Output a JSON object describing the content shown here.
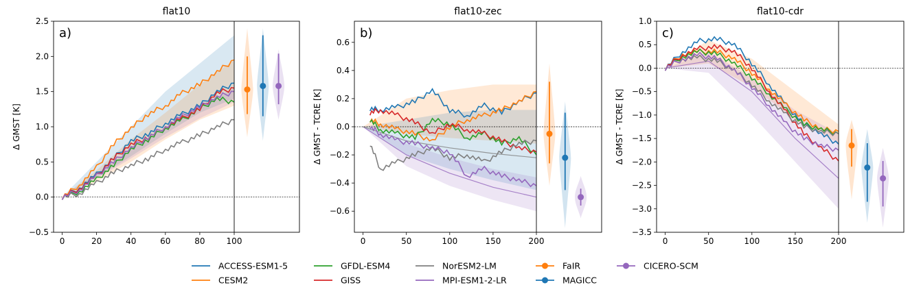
{
  "chart_data": [
    {
      "type": "line",
      "title": "flat10",
      "panel_label": "a)",
      "xlabel": "",
      "ylabel": "Δ GMST [K]",
      "xlim": [
        -5,
        100
      ],
      "ylim": [
        -0.5,
        2.5
      ],
      "xticks": [
        0,
        20,
        40,
        60,
        80,
        100
      ],
      "yticks": [
        -0.5,
        0.0,
        0.5,
        1.0,
        1.5,
        2.0,
        2.5
      ],
      "ytick_labels": [
        "−0.5",
        "0.0",
        "0.5",
        "1.0",
        "1.5",
        "2.0",
        "2.5"
      ],
      "reference_line": 0,
      "bands": [
        {
          "color": "#1f77b4",
          "x": [
            0,
            20,
            40,
            60,
            80,
            100
          ],
          "lower": [
            0,
            0.28,
            0.58,
            0.9,
            1.2,
            1.4
          ],
          "upper": [
            0,
            0.5,
            1.0,
            1.5,
            1.9,
            2.3
          ]
        },
        {
          "color": "#ff7f0e",
          "x": [
            0,
            20,
            40,
            60,
            80,
            100
          ],
          "lower": [
            0,
            0.22,
            0.5,
            0.82,
            1.1,
            1.3
          ],
          "upper": [
            0,
            0.38,
            0.82,
            1.2,
            1.6,
            1.95
          ]
        },
        {
          "color": "#9467bd",
          "x": [
            0,
            20,
            40,
            60,
            80,
            100
          ],
          "lower": [
            0,
            0.26,
            0.55,
            0.85,
            1.12,
            1.35
          ],
          "upper": [
            0,
            0.34,
            0.68,
            1.0,
            1.3,
            1.55
          ]
        }
      ],
      "series": [
        {
          "name": "ACCESS-ESM1-5",
          "color": "#1f77b4",
          "x": [
            0,
            10,
            20,
            30,
            40,
            50,
            60,
            70,
            80,
            90,
            100
          ],
          "y": [
            0,
            0.13,
            0.32,
            0.55,
            0.8,
            0.9,
            1.05,
            1.18,
            1.3,
            1.5,
            1.62
          ]
        },
        {
          "name": "CESM2",
          "color": "#ff7f0e",
          "x": [
            0,
            10,
            20,
            30,
            40,
            50,
            60,
            70,
            80,
            90,
            100
          ],
          "y": [
            0,
            0.17,
            0.42,
            0.75,
            0.98,
            1.18,
            1.3,
            1.48,
            1.6,
            1.78,
            1.95
          ]
        },
        {
          "name": "GFDL-ESM4",
          "color": "#2ca02c",
          "x": [
            0,
            10,
            20,
            30,
            40,
            50,
            60,
            70,
            80,
            90,
            100
          ],
          "y": [
            0,
            0.08,
            0.25,
            0.45,
            0.68,
            0.82,
            0.98,
            1.1,
            1.25,
            1.4,
            1.35
          ]
        },
        {
          "name": "GISS",
          "color": "#d62728",
          "x": [
            0,
            10,
            20,
            30,
            40,
            50,
            60,
            70,
            80,
            90,
            100
          ],
          "y": [
            0,
            0.12,
            0.3,
            0.55,
            0.75,
            0.85,
            1.0,
            1.12,
            1.25,
            1.48,
            1.55
          ]
        },
        {
          "name": "NorESM2-LM",
          "color": "#7f7f7f",
          "x": [
            0,
            10,
            20,
            30,
            40,
            50,
            60,
            70,
            80,
            90,
            100
          ],
          "y": [
            0,
            0.05,
            0.2,
            0.35,
            0.45,
            0.55,
            0.68,
            0.78,
            0.88,
            1.0,
            1.1
          ]
        },
        {
          "name": "MPI-ESM1-2-LR",
          "color": "#9467bd",
          "x": [
            0,
            10,
            20,
            30,
            40,
            50,
            60,
            70,
            80,
            90,
            100
          ],
          "y": [
            0,
            0.1,
            0.3,
            0.5,
            0.7,
            0.85,
            1.0,
            1.15,
            1.28,
            1.42,
            1.5
          ]
        }
      ],
      "violins": [
        {
          "name": "FaIR",
          "color": "#ff7f0e",
          "median": 1.53,
          "q_low": 1.18,
          "q_high": 2.0,
          "min": 0.85,
          "max": 2.4
        },
        {
          "name": "MAGICC",
          "color": "#1f77b4",
          "median": 1.58,
          "q_low": 1.15,
          "q_high": 2.3,
          "min": 0.8,
          "max": 2.4
        },
        {
          "name": "CICERO-SCM",
          "color": "#9467bd",
          "median": 1.58,
          "q_low": 1.32,
          "q_high": 2.04,
          "min": 1.1,
          "max": 2.1
        }
      ]
    },
    {
      "type": "line",
      "title": "flat10-zec",
      "panel_label": "b)",
      "xlabel": "",
      "ylabel": "Δ GMST - TCRE [K]",
      "xlim": [
        -10,
        200
      ],
      "ylim": [
        -0.75,
        0.75
      ],
      "xticks": [
        0,
        50,
        100,
        150,
        200
      ],
      "yticks": [
        -0.6,
        -0.4,
        -0.2,
        0.0,
        0.2,
        0.4,
        0.6
      ],
      "ytick_labels": [
        "−0.6",
        "−0.4",
        "−0.2",
        "0.0",
        "0.2",
        "0.4",
        "0.6"
      ],
      "reference_line": 0,
      "bands": [
        {
          "color": "#ff7f0e",
          "x": [
            0,
            50,
            100,
            150,
            200
          ],
          "lower": [
            0,
            -0.05,
            -0.08,
            -0.1,
            -0.12
          ],
          "upper": [
            0,
            0.2,
            0.26,
            0.3,
            0.3
          ]
        },
        {
          "color": "#1f77b4",
          "x": [
            0,
            50,
            100,
            150,
            200
          ],
          "lower": [
            0,
            -0.2,
            -0.3,
            -0.38,
            -0.45
          ],
          "upper": [
            0,
            0.05,
            0.1,
            0.12,
            0.12
          ]
        },
        {
          "color": "#9467bd",
          "x": [
            0,
            50,
            100,
            150,
            200
          ],
          "lower": [
            0,
            -0.28,
            -0.42,
            -0.52,
            -0.6
          ],
          "upper": [
            0,
            -0.12,
            -0.22,
            -0.3,
            -0.36
          ]
        }
      ],
      "series": [
        {
          "name": "ACCESS-ESM1-5",
          "color": "#1f77b4",
          "x": [
            8,
            20,
            40,
            60,
            80,
            100,
            120,
            140,
            160,
            180,
            200
          ],
          "y": [
            0.13,
            0.12,
            0.14,
            0.18,
            0.26,
            0.12,
            0.08,
            0.15,
            0.1,
            0.18,
            0.24
          ]
        },
        {
          "name": "CESM2",
          "color": "#ff7f0e",
          "x": [
            8,
            20,
            40,
            60,
            80,
            100,
            120,
            140,
            160,
            180,
            200
          ],
          "y": [
            0.05,
            0.02,
            -0.02,
            -0.05,
            -0.1,
            0.0,
            0.05,
            0.08,
            0.12,
            0.18,
            0.25
          ]
        },
        {
          "name": "GFDL-ESM4",
          "color": "#2ca02c",
          "x": [
            8,
            20,
            40,
            60,
            80,
            100,
            120,
            140,
            160,
            180,
            200
          ],
          "y": [
            0.05,
            -0.02,
            -0.05,
            -0.08,
            0.05,
            0.02,
            -0.08,
            -0.05,
            -0.12,
            -0.08,
            -0.2
          ]
        },
        {
          "name": "GISS",
          "color": "#d62728",
          "x": [
            8,
            20,
            40,
            60,
            80,
            100,
            120,
            140,
            160,
            180,
            200
          ],
          "y": [
            0.1,
            0.12,
            0.08,
            0.03,
            -0.05,
            0.02,
            -0.02,
            -0.05,
            -0.1,
            -0.15,
            -0.18
          ]
        },
        {
          "name": "NorESM2-LM",
          "color": "#7f7f7f",
          "x": [
            8,
            20,
            40,
            60,
            80,
            100,
            120,
            140,
            160,
            180,
            200
          ],
          "y": [
            -0.12,
            -0.3,
            -0.25,
            -0.2,
            -0.15,
            -0.22,
            -0.2,
            -0.25,
            -0.18,
            -0.12,
            -0.1
          ]
        },
        {
          "name": "MPI-ESM1-2-LR",
          "color": "#9467bd",
          "x": [
            8,
            20,
            40,
            60,
            80,
            100,
            120,
            140,
            160,
            180,
            200
          ],
          "y": [
            0.0,
            -0.05,
            -0.1,
            -0.12,
            -0.15,
            -0.18,
            -0.35,
            -0.3,
            -0.35,
            -0.38,
            -0.42
          ]
        }
      ],
      "model_mean_lines": [
        {
          "color": "#9467bd",
          "x": [
            0,
            50,
            100,
            150,
            200
          ],
          "y": [
            0,
            -0.2,
            -0.33,
            -0.43,
            -0.5
          ]
        },
        {
          "color": "#7f7f7f",
          "x": [
            0,
            50,
            100,
            150,
            200
          ],
          "y": [
            0,
            -0.1,
            -0.15,
            -0.19,
            -0.22
          ]
        }
      ],
      "violins": [
        {
          "name": "FaIR",
          "color": "#ff7f0e",
          "median": -0.05,
          "q_low": -0.26,
          "q_high": 0.32,
          "min": -0.42,
          "max": 0.45
        },
        {
          "name": "MAGICC",
          "color": "#1f77b4",
          "median": -0.22,
          "q_low": -0.45,
          "q_high": 0.1,
          "min": -0.72,
          "max": 0.18
        },
        {
          "name": "CICERO-SCM",
          "color": "#9467bd",
          "median": -0.5,
          "q_low": -0.56,
          "q_high": -0.44,
          "min": -0.65,
          "max": -0.35
        }
      ]
    },
    {
      "type": "line",
      "title": "flat10-cdr",
      "panel_label": "c)",
      "xlabel": "",
      "ylabel": "Δ GMST - TCRE [K]",
      "xlim": [
        -10,
        200
      ],
      "ylim": [
        -3.5,
        1.0
      ],
      "xticks": [
        0,
        50,
        100,
        150,
        200
      ],
      "yticks": [
        -3.5,
        -3.0,
        -2.5,
        -2.0,
        -1.5,
        -1.0,
        -0.5,
        0.0,
        0.5,
        1.0
      ],
      "ytick_labels": [
        "−3.5",
        "−3.0",
        "−2.5",
        "−2.0",
        "−1.5",
        "−1.0",
        "−0.5",
        "0.0",
        "0.5",
        "1.0"
      ],
      "reference_line": 0,
      "bands": [
        {
          "color": "#ff7f0e",
          "x": [
            0,
            50,
            100,
            150,
            200
          ],
          "lower": [
            0,
            0.1,
            -0.4,
            -1.1,
            -1.6
          ],
          "upper": [
            0,
            0.6,
            0.2,
            -0.5,
            -1.2
          ]
        },
        {
          "color": "#9467bd",
          "x": [
            0,
            50,
            100,
            150,
            200
          ],
          "lower": [
            0,
            -0.1,
            -1.0,
            -2.0,
            -3.0
          ],
          "upper": [
            0,
            0.35,
            -0.2,
            -0.9,
            -1.4
          ]
        }
      ],
      "series": [
        {
          "name": "ACCESS-ESM1-5",
          "color": "#1f77b4",
          "x": [
            0,
            20,
            40,
            60,
            80,
            100,
            120,
            140,
            160,
            180,
            200
          ],
          "y": [
            0,
            0.35,
            0.58,
            0.62,
            0.5,
            0.1,
            -0.35,
            -0.8,
            -1.2,
            -1.4,
            -1.62
          ]
        },
        {
          "name": "CESM2",
          "color": "#ff7f0e",
          "x": [
            0,
            20,
            40,
            60,
            80,
            100,
            120,
            140,
            160,
            180,
            200
          ],
          "y": [
            0,
            0.3,
            0.35,
            0.35,
            0.2,
            -0.1,
            -0.45,
            -0.8,
            -1.1,
            -1.3,
            -1.35
          ]
        },
        {
          "name": "GFDL-ESM4",
          "color": "#2ca02c",
          "x": [
            0,
            20,
            40,
            60,
            80,
            100,
            120,
            140,
            160,
            180,
            200
          ],
          "y": [
            0,
            0.25,
            0.35,
            0.3,
            0.1,
            -0.2,
            -0.55,
            -0.9,
            -1.2,
            -1.3,
            -1.4
          ]
        },
        {
          "name": "GISS",
          "color": "#d62728",
          "x": [
            0,
            20,
            40,
            60,
            80,
            100,
            120,
            140,
            160,
            180,
            200
          ],
          "y": [
            0,
            0.28,
            0.42,
            0.45,
            0.35,
            0.0,
            -0.5,
            -0.95,
            -1.4,
            -1.7,
            -1.98
          ]
        },
        {
          "name": "NorESM2-LM",
          "color": "#7f7f7f",
          "x": [
            0,
            20,
            40,
            60,
            80,
            100,
            120,
            140,
            160,
            180,
            200
          ],
          "y": [
            0,
            0.2,
            0.22,
            0.15,
            -0.05,
            -0.35,
            -0.7,
            -1.0,
            -1.25,
            -1.35,
            -1.4
          ]
        },
        {
          "name": "MPI-ESM1-2-LR",
          "color": "#9467bd",
          "x": [
            0,
            20,
            40,
            60,
            80,
            100,
            120,
            140,
            160,
            180,
            200
          ],
          "y": [
            0,
            0.2,
            0.28,
            0.2,
            -0.05,
            -0.4,
            -0.8,
            -1.2,
            -1.5,
            -1.65,
            -1.75
          ]
        }
      ],
      "model_mean_lines": [
        {
          "color": "#9467bd",
          "x": [
            0,
            50,
            100,
            150,
            200
          ],
          "y": [
            0,
            0.15,
            -0.5,
            -1.5,
            -2.35
          ]
        }
      ],
      "violins": [
        {
          "name": "FaIR",
          "color": "#ff7f0e",
          "median": -1.65,
          "q_low": -2.1,
          "q_high": -1.3,
          "min": -2.8,
          "max": -1.1
        },
        {
          "name": "MAGICC",
          "color": "#1f77b4",
          "median": -2.12,
          "q_low": -2.85,
          "q_high": -1.6,
          "min": -3.3,
          "max": -1.3
        },
        {
          "name": "CICERO-SCM",
          "color": "#9467bd",
          "median": -2.35,
          "q_low": -2.95,
          "q_high": -1.98,
          "min": -3.4,
          "max": -1.7
        }
      ]
    }
  ],
  "legend": {
    "placement": "bottom-center",
    "entries": [
      {
        "name": "ACCESS-ESM1-5",
        "color": "#1f77b4",
        "marker": false
      },
      {
        "name": "CESM2",
        "color": "#ff7f0e",
        "marker": false
      },
      {
        "name": "GFDL-ESM4",
        "color": "#2ca02c",
        "marker": false
      },
      {
        "name": "GISS",
        "color": "#d62728",
        "marker": false
      },
      {
        "name": "NorESM2-LM",
        "color": "#7f7f7f",
        "marker": false
      },
      {
        "name": "MPI-ESM1-2-LR",
        "color": "#9467bd",
        "marker": false
      },
      {
        "name": "FaIR",
        "color": "#ff7f0e",
        "marker": true
      },
      {
        "name": "MAGICC",
        "color": "#1f77b4",
        "marker": true
      },
      {
        "name": "CICERO-SCM",
        "color": "#9467bd",
        "marker": true
      }
    ]
  }
}
